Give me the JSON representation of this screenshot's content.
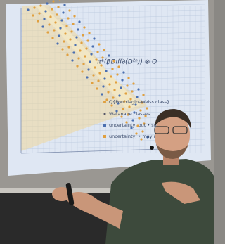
{
  "slide": {
    "formula": "π*(BDiff∂(D²ⁿ)) ⊗ Q",
    "legend": [
      "Q{Pontriagin–Weiss class}",
      "Watanabe classes",
      "uncertainty, but • surviv",
      "uncertainty, • may n"
    ]
  }
}
